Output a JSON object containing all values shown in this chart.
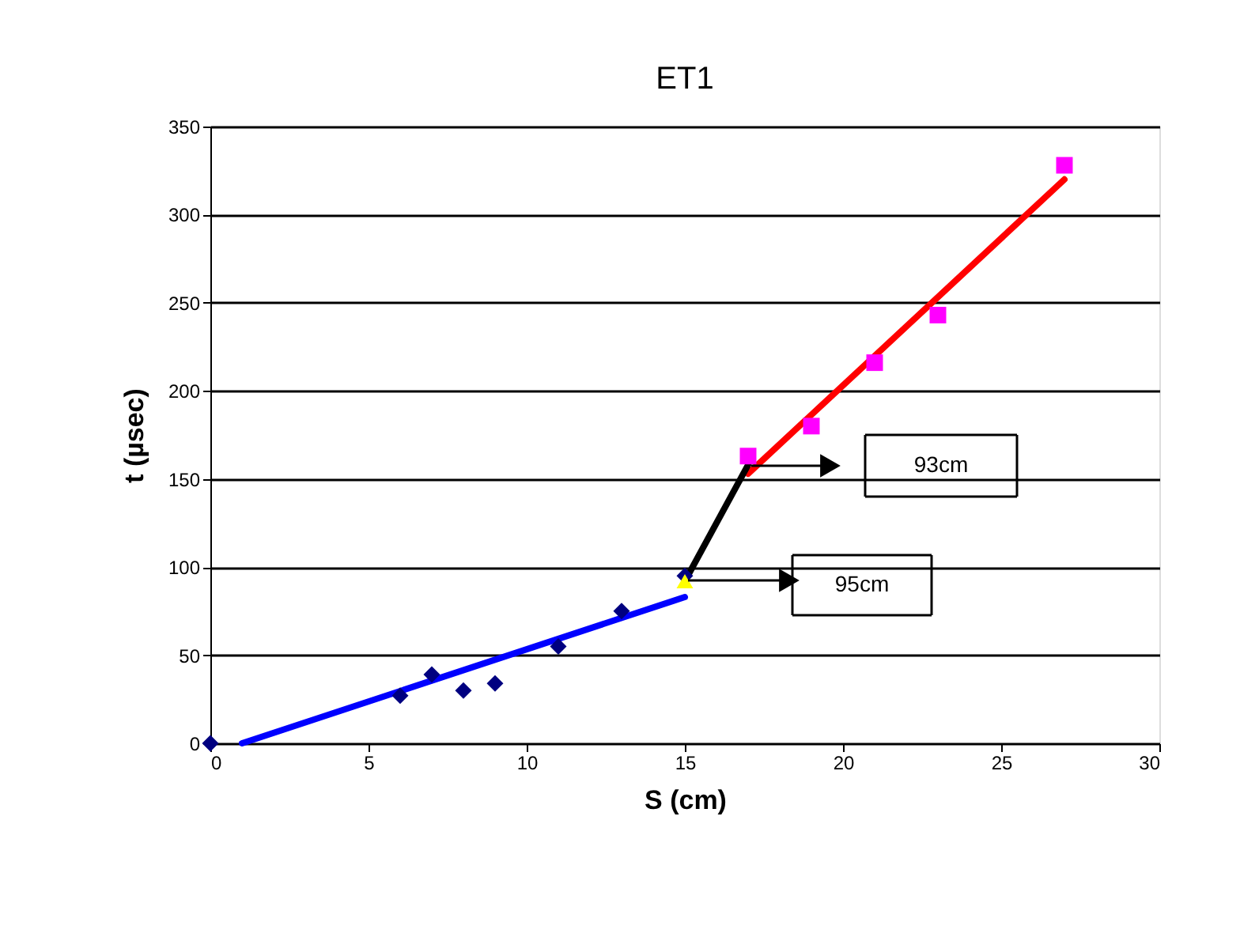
{
  "chart_data": {
    "type": "scatter",
    "title": "ET1",
    "xlabel": "S (cm)",
    "ylabel": "t (µsec)",
    "xlim": [
      0,
      30
    ],
    "xticks": [
      0,
      5,
      10,
      15,
      20,
      25,
      30
    ],
    "ylim": [
      0,
      350
    ],
    "yticks": [
      0,
      50,
      100,
      150,
      200,
      250,
      300,
      350
    ],
    "grid": "y",
    "series": [
      {
        "marker": "diamond",
        "color": "#000080",
        "x": [
          0,
          6,
          7,
          8,
          9,
          11,
          13,
          15
        ],
        "values": [
          0,
          27,
          39,
          30,
          34,
          55,
          75,
          95
        ]
      },
      {
        "marker": "square",
        "color": "#ff00ff",
        "x": [
          17,
          19,
          21,
          23,
          27
        ],
        "values": [
          163,
          180,
          216,
          243,
          328
        ]
      },
      {
        "marker": "triangle",
        "color": "#ffff00",
        "x": [
          15
        ],
        "values": [
          92
        ]
      },
      {
        "type": "line",
        "marker": "none",
        "color": "#0000ff",
        "x": [
          1,
          15
        ],
        "values": [
          0,
          83
        ]
      },
      {
        "type": "line",
        "marker": "none",
        "color": "#ff0000",
        "x": [
          17,
          27
        ],
        "values": [
          153,
          320
        ]
      },
      {
        "type": "line",
        "marker": "none",
        "color": "#000000",
        "x": [
          15,
          17
        ],
        "values": [
          92,
          158
        ]
      }
    ],
    "annotations": [
      "93cm",
      "95cm"
    ]
  }
}
